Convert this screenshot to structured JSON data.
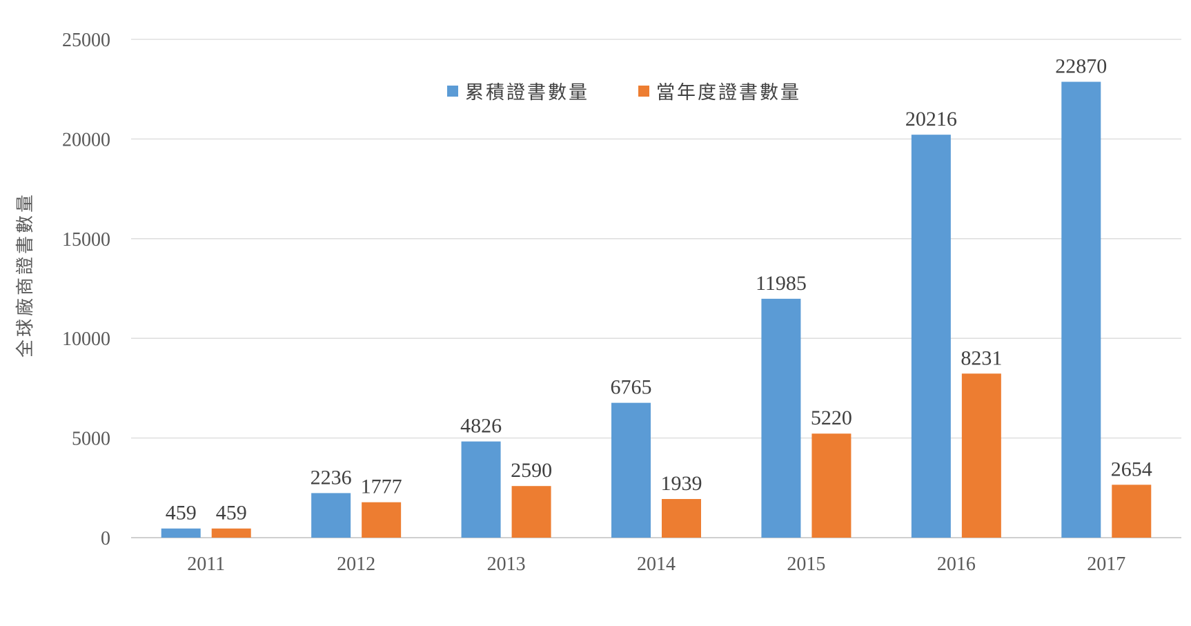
{
  "chart_data": {
    "type": "bar",
    "title": "",
    "xlabel": "",
    "ylabel": "全球廠商證書數量",
    "categories": [
      "2011",
      "2012",
      "2013",
      "2014",
      "2015",
      "2016",
      "2017"
    ],
    "series": [
      {
        "name": "累積證書數量",
        "color": "#5b9bd5",
        "values": [
          459,
          2236,
          4826,
          6765,
          11985,
          20216,
          22870
        ]
      },
      {
        "name": "當年度證書數量",
        "color": "#ed7d31",
        "values": [
          459,
          1777,
          2590,
          1939,
          5220,
          8231,
          2654
        ]
      }
    ],
    "ylim": [
      0,
      25000
    ],
    "yticks": [
      0,
      5000,
      10000,
      15000,
      20000,
      25000
    ],
    "grid": true,
    "legend_position": "top-center",
    "data_labels": true
  }
}
